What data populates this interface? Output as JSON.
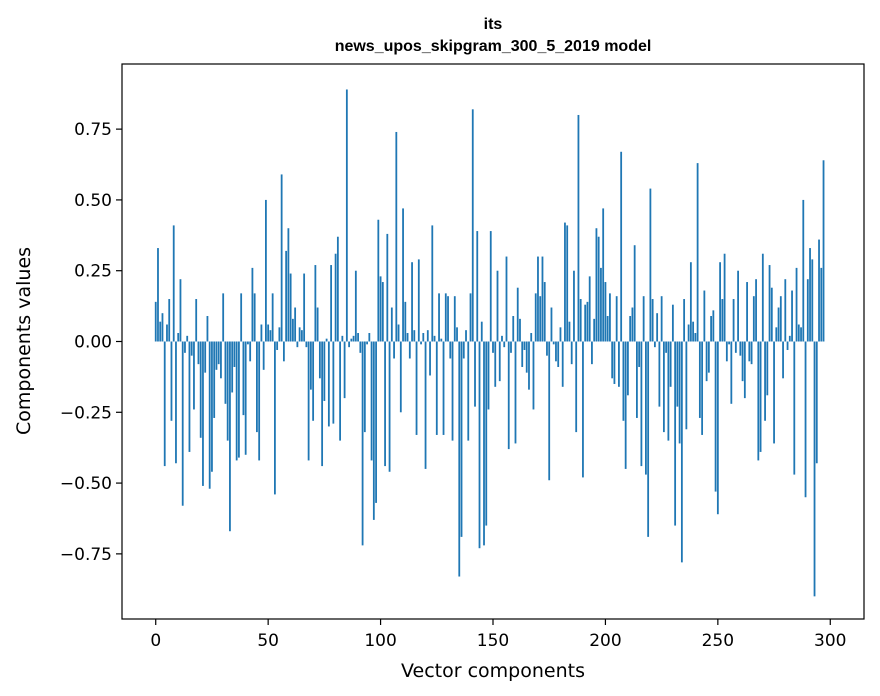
{
  "chart_data": {
    "type": "bar",
    "title": "its",
    "subtitle": "news_upos_skipgram_300_5_2019 model",
    "xlabel": "Vector components",
    "ylabel": "Components values",
    "xlim": [
      -15,
      315
    ],
    "ylim": [
      -0.98,
      0.98
    ],
    "xticks": [
      0,
      50,
      100,
      150,
      200,
      250,
      300
    ],
    "xtick_labels": [
      "0",
      "50",
      "100",
      "150",
      "200",
      "250",
      "300"
    ],
    "yticks": [
      -0.75,
      -0.5,
      -0.25,
      0.0,
      0.25,
      0.5,
      0.75
    ],
    "ytick_labels": [
      "−0.75",
      "−0.50",
      "−0.25",
      "0.00",
      "0.25",
      "0.50",
      "0.75"
    ],
    "bar_color": "#1f77b4",
    "grid": false,
    "values": [
      0.14,
      0.33,
      0.07,
      0.1,
      -0.44,
      0.06,
      0.15,
      -0.28,
      0.41,
      -0.43,
      0.03,
      0.22,
      -0.58,
      -0.04,
      0.02,
      -0.39,
      -0.05,
      -0.24,
      0.15,
      -0.08,
      -0.34,
      -0.51,
      -0.11,
      0.09,
      -0.52,
      -0.46,
      -0.27,
      -0.1,
      -0.08,
      -0.13,
      0.17,
      -0.22,
      -0.35,
      -0.67,
      -0.18,
      -0.09,
      -0.42,
      -0.41,
      0.17,
      -0.26,
      -0.4,
      -0.01,
      -0.07,
      0.26,
      0.17,
      -0.32,
      -0.42,
      0.06,
      -0.1,
      0.5,
      0.06,
      0.04,
      0.17,
      -0.54,
      -0.03,
      0.05,
      0.59,
      -0.07,
      0.32,
      0.4,
      0.24,
      0.08,
      0.12,
      -0.02,
      0.05,
      0.04,
      0.24,
      -0.02,
      -0.42,
      -0.17,
      -0.28,
      0.27,
      0.12,
      -0.13,
      -0.44,
      -0.21,
      0.01,
      -0.3,
      0.27,
      -0.29,
      0.31,
      0.37,
      -0.35,
      0.02,
      -0.2,
      0.89,
      -0.02,
      0.01,
      0.02,
      0.25,
      0.03,
      -0.04,
      -0.72,
      -0.32,
      -0.01,
      0.03,
      -0.42,
      -0.63,
      -0.57,
      0.43,
      0.23,
      0.21,
      -0.44,
      0.38,
      -0.46,
      0.12,
      -0.06,
      0.74,
      0.06,
      -0.25,
      0.47,
      0.14,
      0.03,
      -0.06,
      0.28,
      0.04,
      -0.33,
      0.29,
      -0.01,
      0.03,
      -0.45,
      0.04,
      -0.12,
      0.41,
      0.02,
      -0.33,
      0.17,
      0.01,
      -0.33,
      0.17,
      0.16,
      -0.06,
      -0.35,
      0.16,
      0.05,
      -0.83,
      -0.69,
      -0.06,
      0.04,
      -0.35,
      0.17,
      0.82,
      -0.23,
      0.39,
      -0.73,
      0.07,
      -0.72,
      -0.65,
      -0.24,
      0.39,
      -0.04,
      -0.16,
      0.25,
      -0.14,
      0.02,
      -0.02,
      0.3,
      -0.38,
      -0.04,
      0.09,
      -0.36,
      0.19,
      0.08,
      -0.09,
      -0.03,
      -0.11,
      -0.17,
      0.03,
      -0.24,
      0.17,
      0.3,
      0.16,
      0.3,
      0.21,
      -0.05,
      -0.49,
      0.12,
      -0.01,
      -0.07,
      -0.09,
      0.05,
      -0.16,
      0.42,
      0.41,
      0.07,
      -0.08,
      0.25,
      -0.32,
      0.8,
      0.15,
      -0.48,
      0.13,
      0.14,
      0.23,
      -0.08,
      0.08,
      0.4,
      0.37,
      0.26,
      0.47,
      0.21,
      0.09,
      0.17,
      -0.13,
      -0.15,
      0.16,
      -0.16,
      0.67,
      -0.28,
      -0.45,
      -0.19,
      0.09,
      0.12,
      0.34,
      -0.27,
      -0.09,
      -0.44,
      0.16,
      -0.47,
      -0.69,
      0.54,
      0.15,
      -0.02,
      0.1,
      -0.23,
      0.16,
      -0.32,
      -0.04,
      -0.35,
      -0.16,
      0.13,
      -0.65,
      -0.23,
      -0.36,
      -0.78,
      0.15,
      -0.31,
      0.06,
      0.28,
      0.07,
      0.03,
      0.63,
      -0.27,
      -0.33,
      0.18,
      -0.14,
      -0.11,
      0.09,
      0.11,
      -0.53,
      -0.61,
      0.28,
      0.15,
      0.31,
      -0.07,
      -0.01,
      -0.22,
      0.15,
      -0.04,
      0.25,
      -0.05,
      -0.14,
      -0.2,
      0.21,
      -0.07,
      -0.08,
      0.16,
      0.22,
      -0.42,
      -0.39,
      0.31,
      -0.28,
      -0.19,
      0.27,
      0.19,
      -0.36,
      0.05,
      0.12,
      0.16,
      -0.13,
      0.22,
      -0.03,
      0.02,
      0.18,
      -0.47,
      0.26,
      0.06,
      0.05,
      0.5,
      -0.55,
      0.22,
      0.33,
      0.29,
      -0.9,
      -0.43,
      0.36,
      0.26,
      0.64
    ]
  }
}
